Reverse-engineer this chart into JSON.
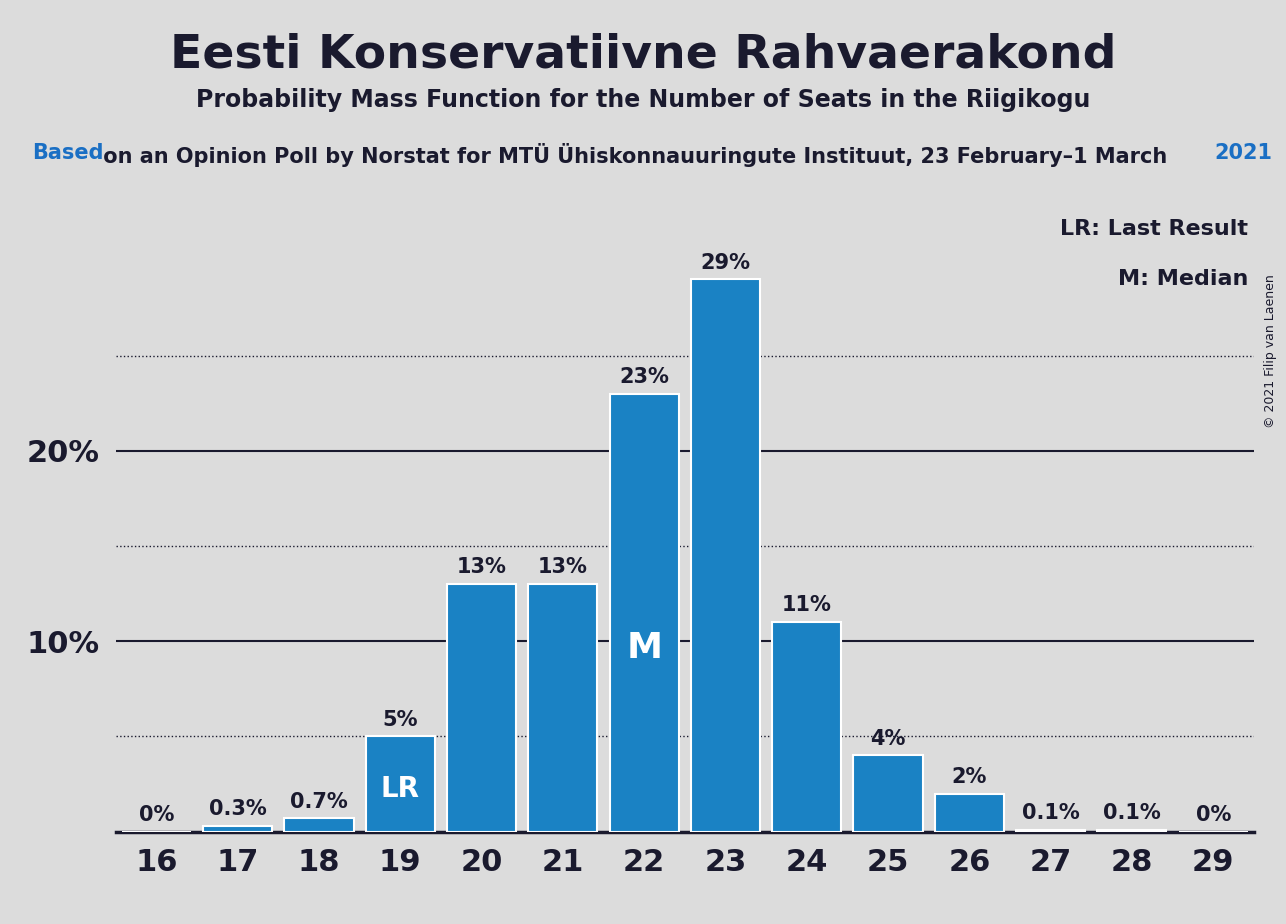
{
  "title": "Eesti Konservatiivne Rahvaerakond",
  "subtitle": "Probability Mass Function for the Number of Seats in the Riigikogu",
  "source_word_based": "Based",
  "source_middle": " on an Opinion Poll by Norstat for MTÜ Ühiskonnauuringute Instituut, 23 February–1 March",
  "source_year": "2021",
  "copyright": "© 2021 Filip van Laenen",
  "seats": [
    16,
    17,
    18,
    19,
    20,
    21,
    22,
    23,
    24,
    25,
    26,
    27,
    28,
    29
  ],
  "probabilities": [
    0.0,
    0.3,
    0.7,
    5.0,
    13.0,
    13.0,
    23.0,
    29.0,
    11.0,
    4.0,
    2.0,
    0.1,
    0.1,
    0.0
  ],
  "prob_labels": [
    "0%",
    "0.3%",
    "0.7%",
    "5%",
    "13%",
    "13%",
    "23%",
    "29%",
    "11%",
    "4%",
    "2%",
    "0.1%",
    "0.1%",
    "0%"
  ],
  "bar_color": "#1a82c4",
  "background_color": "#dcdcdc",
  "text_color": "#1a1a2e",
  "blue_color": "#1a6fc4",
  "lr_seat": 19,
  "median_seat": 22,
  "yticks": [
    10,
    20
  ],
  "ytick_labels": [
    "10%",
    "20%"
  ],
  "dotted_lines": [
    5,
    15,
    25
  ],
  "solid_lines": [
    10,
    20
  ],
  "ylim": [
    0,
    33
  ],
  "xlim_min": 15.5,
  "xlim_max": 29.5,
  "title_fontsize": 34,
  "subtitle_fontsize": 17,
  "source_fontsize": 15,
  "axis_fontsize": 22,
  "bar_label_fontsize": 15,
  "annotation_fontsize": 20,
  "legend_fontsize": 16,
  "copyright_fontsize": 9,
  "legend_lr": "LR: Last Result",
  "legend_m": "M: Median"
}
